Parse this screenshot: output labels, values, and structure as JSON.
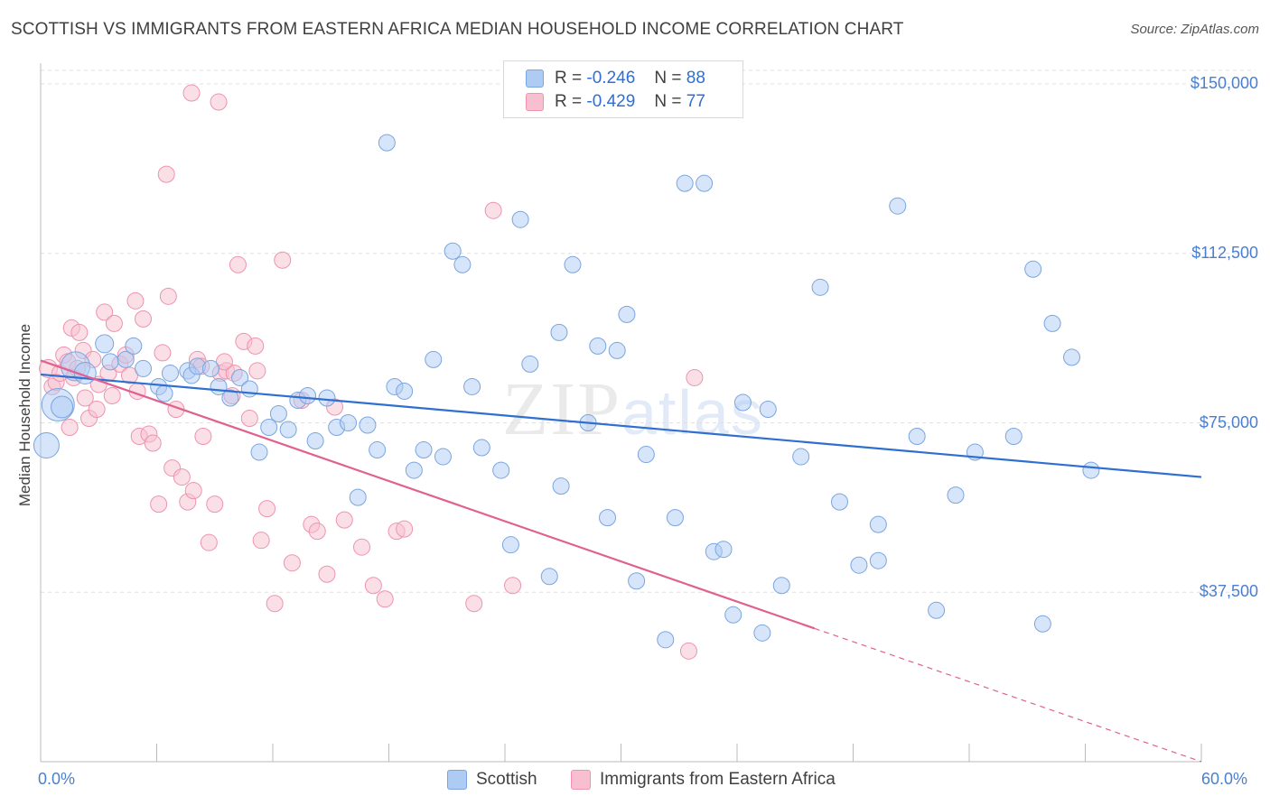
{
  "title": "SCOTTISH VS IMMIGRANTS FROM EASTERN AFRICA MEDIAN HOUSEHOLD INCOME CORRELATION CHART",
  "source": "Source: ZipAtlas.com",
  "watermark": {
    "zip": "ZIP",
    "atlas": "atlas"
  },
  "legend": {
    "scottish": {
      "r_label": "R =",
      "r_value": "-0.246",
      "n_label": "N =",
      "n_value": "88"
    },
    "eastern_africa": {
      "r_label": "R =",
      "r_value": "-0.429",
      "n_label": "N =",
      "n_value": "77"
    }
  },
  "colors": {
    "scottish_fill": "#aecbf3",
    "scottish_stroke": "#7aa5e0",
    "scottish_line": "#2f6fd0",
    "ea_fill": "#f8bfd0",
    "ea_stroke": "#ee93b0",
    "ea_line": "#e0618e",
    "grid": "#e0e0e0",
    "tick_text": "#4a7fcf"
  },
  "chart_data": {
    "type": "scatter",
    "xlabel": "",
    "ylabel": "Median Household Income",
    "xlim": [
      0,
      60
    ],
    "ylim": [
      0,
      153000
    ],
    "x_tick_labels": {
      "min": "0.0%",
      "max": "60.0%"
    },
    "y_ticks": [
      {
        "value": 37500,
        "label": "$37,500"
      },
      {
        "value": 75000,
        "label": "$75,000"
      },
      {
        "value": 112500,
        "label": "$112,500"
      },
      {
        "value": 150000,
        "label": "$150,000"
      }
    ],
    "legend_position": "bottom",
    "series": [
      {
        "name": "Scottish",
        "trend": {
          "x": [
            0,
            60
          ],
          "y": [
            85700,
            63000
          ],
          "dashed_from": null
        },
        "points": [
          [
            0.3,
            70000,
            14
          ],
          [
            0.9,
            79000,
            18
          ],
          [
            1.1,
            78500,
            12
          ],
          [
            1.8,
            87500,
            16
          ],
          [
            2.3,
            86000,
            12
          ],
          [
            3.3,
            92500,
            10
          ],
          [
            3.6,
            88500,
            9
          ],
          [
            4.4,
            89000,
            9
          ],
          [
            4.8,
            92000,
            9
          ],
          [
            5.3,
            87000,
            9
          ],
          [
            6.1,
            83000,
            9
          ],
          [
            6.4,
            81500,
            9
          ],
          [
            6.7,
            86000,
            9
          ],
          [
            7.6,
            86500,
            9
          ],
          [
            7.8,
            85500,
            9
          ],
          [
            8.1,
            87500,
            9
          ],
          [
            8.8,
            87000,
            9
          ],
          [
            9.2,
            83000,
            9
          ],
          [
            9.8,
            80500,
            9
          ],
          [
            10.3,
            85000,
            9
          ],
          [
            10.8,
            82500,
            9
          ],
          [
            11.3,
            68500,
            9
          ],
          [
            11.8,
            74000,
            9
          ],
          [
            12.3,
            77000,
            9
          ],
          [
            12.8,
            73500,
            9
          ],
          [
            13.3,
            80000,
            9
          ],
          [
            13.8,
            81000,
            9
          ],
          [
            14.2,
            71000,
            9
          ],
          [
            14.8,
            80500,
            9
          ],
          [
            15.3,
            74000,
            9
          ],
          [
            15.9,
            75000,
            9
          ],
          [
            16.4,
            58500,
            9
          ],
          [
            16.9,
            74500,
            9
          ],
          [
            17.4,
            69000,
            9
          ],
          [
            17.9,
            137000,
            9
          ],
          [
            18.3,
            83000,
            9
          ],
          [
            18.8,
            82000,
            9
          ],
          [
            19.3,
            64500,
            9
          ],
          [
            19.8,
            69000,
            9
          ],
          [
            20.3,
            89000,
            9
          ],
          [
            20.8,
            67500,
            9
          ],
          [
            21.3,
            113000,
            9
          ],
          [
            21.8,
            110000,
            9
          ],
          [
            22.3,
            83000,
            9
          ],
          [
            22.8,
            69500,
            9
          ],
          [
            23.8,
            64500,
            9
          ],
          [
            24.3,
            48000,
            9
          ],
          [
            24.8,
            120000,
            9
          ],
          [
            25.3,
            88000,
            9
          ],
          [
            26.3,
            41000,
            9
          ],
          [
            26.8,
            95000,
            9
          ],
          [
            26.9,
            61000,
            9
          ],
          [
            27.5,
            110000,
            9
          ],
          [
            28.3,
            75000,
            9
          ],
          [
            28.8,
            92000,
            9
          ],
          [
            29.3,
            54000,
            9
          ],
          [
            29.8,
            91000,
            9
          ],
          [
            30.3,
            99000,
            9
          ],
          [
            30.8,
            40000,
            9
          ],
          [
            31.3,
            68000,
            9
          ],
          [
            32.3,
            27000,
            9
          ],
          [
            32.8,
            54000,
            9
          ],
          [
            33.3,
            128000,
            9
          ],
          [
            34.3,
            128000,
            9
          ],
          [
            34.8,
            46500,
            9
          ],
          [
            35.3,
            47000,
            9
          ],
          [
            35.8,
            32500,
            9
          ],
          [
            36.3,
            79500,
            9
          ],
          [
            37.3,
            28500,
            9
          ],
          [
            37.6,
            78000,
            9
          ],
          [
            38.3,
            39000,
            9
          ],
          [
            39.3,
            67500,
            9
          ],
          [
            40.3,
            105000,
            9
          ],
          [
            41.3,
            57500,
            9
          ],
          [
            42.3,
            43500,
            9
          ],
          [
            43.3,
            52500,
            9
          ],
          [
            44.3,
            123000,
            9
          ],
          [
            45.3,
            72000,
            9
          ],
          [
            46.3,
            33500,
            9
          ],
          [
            47.3,
            59000,
            9
          ],
          [
            48.3,
            68500,
            9
          ],
          [
            50.3,
            72000,
            9
          ],
          [
            51.3,
            109000,
            9
          ],
          [
            51.8,
            30500,
            9
          ],
          [
            52.3,
            97000,
            9
          ],
          [
            53.3,
            89500,
            9
          ],
          [
            54.3,
            64500,
            9
          ],
          [
            43.3,
            44500,
            9
          ]
        ]
      },
      {
        "name": "Immigrants from Eastern Africa",
        "trend": {
          "x": [
            0,
            40,
            60
          ],
          "y": [
            88800,
            29500,
            0
          ],
          "dashed_from": 40
        },
        "points": [
          [
            0.4,
            87000,
            10
          ],
          [
            0.6,
            83000,
            9
          ],
          [
            0.8,
            84000,
            9
          ],
          [
            1.0,
            86000,
            9
          ],
          [
            1.2,
            90000,
            9
          ],
          [
            1.4,
            88500,
            9
          ],
          [
            1.5,
            74000,
            9
          ],
          [
            1.6,
            96000,
            9
          ],
          [
            1.7,
            85000,
            9
          ],
          [
            1.9,
            87000,
            9
          ],
          [
            2.0,
            95000,
            9
          ],
          [
            2.2,
            91000,
            9
          ],
          [
            2.5,
            76000,
            9
          ],
          [
            2.7,
            89000,
            9
          ],
          [
            2.9,
            78000,
            9
          ],
          [
            3.0,
            83500,
            9
          ],
          [
            3.3,
            99500,
            9
          ],
          [
            3.5,
            86000,
            9
          ],
          [
            3.7,
            81000,
            9
          ],
          [
            3.8,
            97000,
            9
          ],
          [
            4.1,
            88000,
            9
          ],
          [
            4.4,
            90000,
            9
          ],
          [
            4.6,
            85500,
            9
          ],
          [
            4.9,
            102000,
            9
          ],
          [
            5.1,
            72000,
            9
          ],
          [
            5.3,
            98000,
            9
          ],
          [
            5.6,
            72500,
            9
          ],
          [
            5.8,
            70500,
            9
          ],
          [
            6.1,
            57000,
            9
          ],
          [
            6.3,
            90500,
            9
          ],
          [
            6.6,
            103000,
            9
          ],
          [
            6.8,
            65000,
            9
          ],
          [
            7.0,
            78000,
            9
          ],
          [
            7.3,
            63000,
            9
          ],
          [
            7.6,
            57500,
            9
          ],
          [
            7.9,
            60000,
            9
          ],
          [
            8.1,
            89000,
            9
          ],
          [
            8.4,
            72000,
            9
          ],
          [
            8.7,
            48500,
            9
          ],
          [
            9.0,
            57000,
            9
          ],
          [
            9.3,
            86000,
            9
          ],
          [
            9.6,
            86500,
            9
          ],
          [
            9.9,
            81000,
            9
          ],
          [
            10.2,
            110000,
            9
          ],
          [
            10.5,
            93000,
            9
          ],
          [
            10.8,
            76000,
            9
          ],
          [
            11.1,
            92000,
            9
          ],
          [
            11.4,
            49000,
            9
          ],
          [
            11.7,
            56000,
            9
          ],
          [
            12.1,
            35000,
            9
          ],
          [
            12.5,
            111000,
            9
          ],
          [
            13.0,
            44000,
            9
          ],
          [
            13.5,
            80000,
            9
          ],
          [
            14.0,
            52500,
            9
          ],
          [
            14.3,
            51000,
            9
          ],
          [
            14.8,
            41500,
            9
          ],
          [
            15.2,
            78500,
            9
          ],
          [
            15.7,
            53500,
            9
          ],
          [
            16.6,
            47500,
            9
          ],
          [
            17.2,
            39000,
            9
          ],
          [
            17.8,
            36000,
            9
          ],
          [
            18.4,
            51000,
            9
          ],
          [
            18.8,
            51500,
            9
          ],
          [
            22.4,
            35000,
            9
          ],
          [
            23.4,
            122000,
            9
          ],
          [
            24.4,
            39000,
            9
          ],
          [
            33.8,
            85000,
            9
          ],
          [
            33.5,
            24500,
            9
          ],
          [
            6.5,
            130000,
            9
          ],
          [
            7.8,
            148000,
            9
          ],
          [
            9.2,
            146000,
            9
          ],
          [
            8.3,
            87500,
            9
          ],
          [
            10.0,
            86000,
            9
          ],
          [
            9.5,
            88500,
            9
          ],
          [
            11.2,
            86500,
            9
          ],
          [
            5.0,
            82000,
            9
          ],
          [
            2.3,
            80500,
            9
          ]
        ]
      }
    ]
  }
}
